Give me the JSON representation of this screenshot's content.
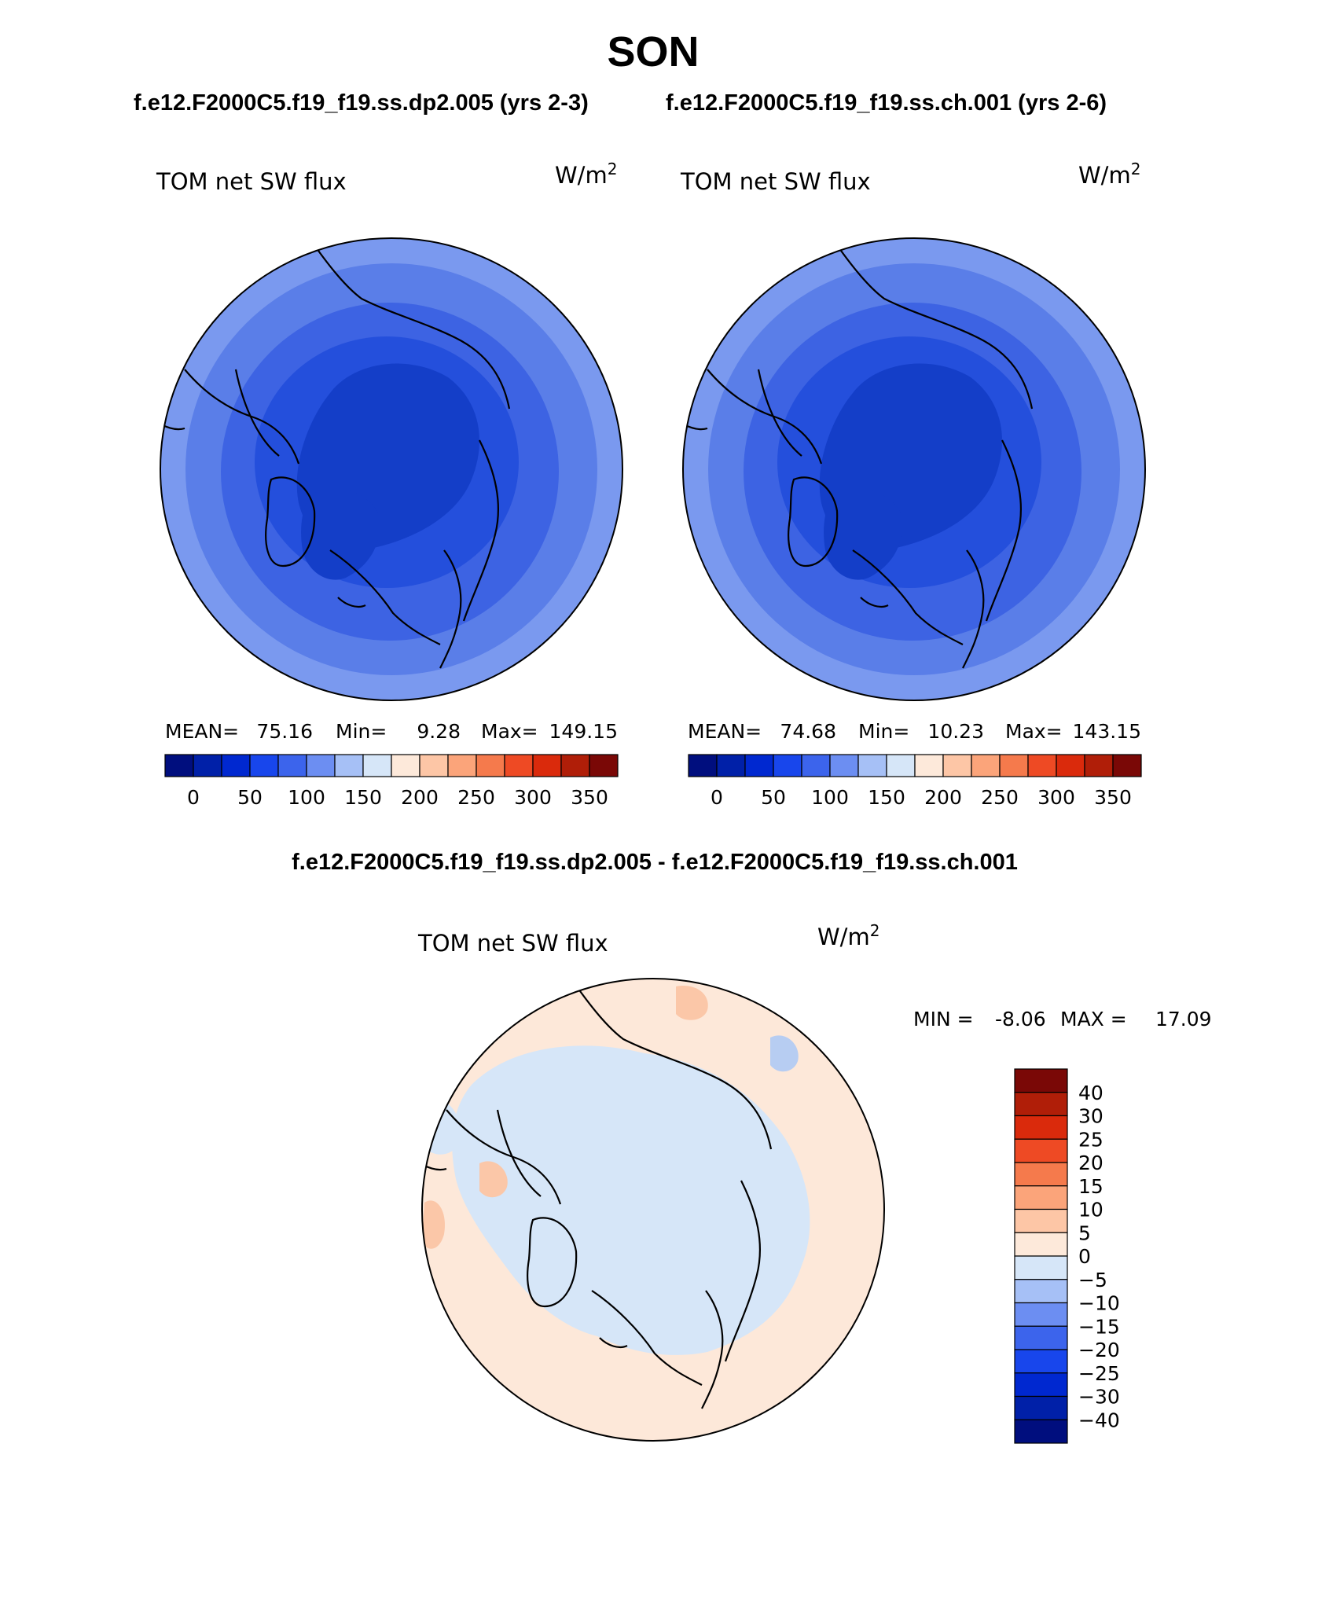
{
  "figure": {
    "season": "SON",
    "subtitle_left": "f.e12.F2000C5.f19_f19.ss.dp2.005 (yrs 2-3)",
    "subtitle_right": "f.e12.F2000C5.f19_f19.ss.ch.001 (yrs 2-6)",
    "diff_title": "f.e12.F2000C5.f19_f19.ss.dp2.005 - f.e12.F2000C5.f19_f19.ss.ch.001"
  },
  "panels": [
    {
      "variable": "TOM net SW flux",
      "units": "W/m",
      "units_sup": "2",
      "stats": {
        "mean_label": "MEAN=",
        "mean": "75.16",
        "min_label": "Min=",
        "min": "9.28",
        "max_label": "Max=",
        "max": "149.15"
      }
    },
    {
      "variable": "TOM net SW flux",
      "units": "W/m",
      "units_sup": "2",
      "stats": {
        "mean_label": "MEAN=",
        "mean": "74.68",
        "min_label": "Min=",
        "min": "10.23",
        "max_label": "Max=",
        "max": "143.15"
      }
    }
  ],
  "abs_colorbar": {
    "colors": [
      "#000e7e",
      "#0020a8",
      "#0028d0",
      "#1846ec",
      "#3c64ec",
      "#6c8ef2",
      "#a6c0f6",
      "#d6e6f8",
      "#fde9da",
      "#fdc6a6",
      "#fba47a",
      "#f57a4c",
      "#ee4a24",
      "#da2a0c",
      "#b01e08",
      "#7a0806"
    ],
    "tick_labels": [
      "0",
      "50",
      "100",
      "150",
      "200",
      "250",
      "300",
      "350"
    ]
  },
  "diff_panel": {
    "variable": "TOM net SW flux",
    "units": "W/m",
    "units_sup": "2",
    "min_label": "MIN =",
    "min": "-8.06",
    "max_label": "MAX =",
    "max": "17.09"
  },
  "diff_colorbar": {
    "colors_top_to_bottom": [
      "#7a0806",
      "#b01e08",
      "#da2a0c",
      "#ee4a24",
      "#f57a4c",
      "#fba47a",
      "#fdc6a6",
      "#fde9da",
      "#d6e6f8",
      "#a6c0f6",
      "#6c8ef2",
      "#3c64ec",
      "#1846ec",
      "#0028d0",
      "#0020a8",
      "#000e7e"
    ],
    "tick_labels": [
      "40",
      "30",
      "25",
      "20",
      "15",
      "10",
      "5",
      "0",
      "−5",
      "−10",
      "−15",
      "−20",
      "−25",
      "−30",
      "−40"
    ]
  },
  "map_palette": {
    "abs_field": [
      "#7a99ef",
      "#5a7ee8",
      "#3d63e3",
      "#244fdc",
      "#143ec8"
    ],
    "diff_field": [
      "#fde8d9",
      "#d6e6f8",
      "#fbc7a8",
      "#b7cdf2"
    ]
  }
}
